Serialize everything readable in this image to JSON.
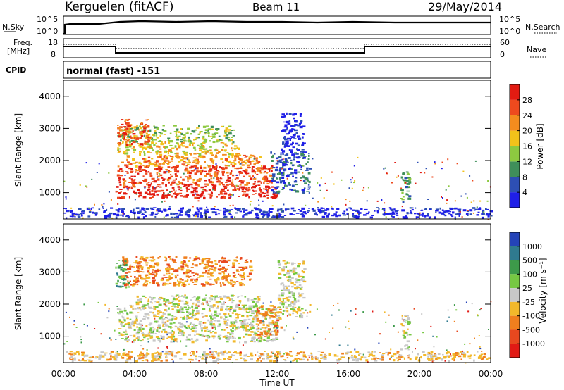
{
  "header": {
    "station": "Kerguelen (fitACF)",
    "beam": "Beam 11",
    "date": "29/May/2014"
  },
  "noise_panel": {
    "left_label": "N.Sky",
    "right_label": "N.Search",
    "left_ticks": [
      "10^5",
      "10^0"
    ],
    "right_ticks": [
      "10^5",
      "10^0"
    ]
  },
  "freq_panel": {
    "left_label_1": "Freq.",
    "left_label_2": "[MHz]",
    "right_label": "Nave",
    "left_ticks": [
      "18",
      "8"
    ],
    "right_ticks": [
      "60",
      "0"
    ]
  },
  "cpid": {
    "label": "CPID",
    "value": "normal (fast) -151"
  },
  "axes": {
    "ylabel": "Slant Range [km]",
    "y_ticks": [
      "1000",
      "2000",
      "3000",
      "4000"
    ],
    "x_ticks": [
      "00:00",
      "04:00",
      "08:00",
      "12:00",
      "16:00",
      "20:00",
      "00:00"
    ],
    "xlabel": "Time UT"
  },
  "power_colorbar": {
    "label": "Power [dB]",
    "ticks": [
      "4",
      "8",
      "12",
      "16",
      "20",
      "24",
      "28"
    ],
    "colors": [
      "#1f1fe8",
      "#2d4fb4",
      "#3f8f5a",
      "#8dc940",
      "#f2c21a",
      "#f48c1e",
      "#ee4a1e",
      "#e21b12"
    ]
  },
  "velocity_colorbar": {
    "label": "Velocity [m s⁻¹]",
    "ticks": [
      "1000",
      "500",
      "100",
      "25",
      "-25",
      "-100",
      "-500",
      "-1000"
    ],
    "colors": [
      "#2443b8",
      "#2f7a8f",
      "#3d9a4a",
      "#76c843",
      "#c8c8c8",
      "#f2b82a",
      "#f07f1e",
      "#e8481f",
      "#e11a15"
    ]
  },
  "chart_data": {
    "type": "heatmap",
    "x_unit": "hours UT",
    "xlim": [
      0,
      24
    ],
    "ylim": [
      180,
      4500
    ],
    "power_patches": [
      {
        "t0": 2.9,
        "t1": 12.0,
        "r0": 850,
        "r1": 1250,
        "level": 7
      },
      {
        "t0": 3.0,
        "t1": 11.8,
        "r0": 1250,
        "r1": 1850,
        "level": 6
      },
      {
        "t0": 3.2,
        "t1": 11.0,
        "r0": 1850,
        "r1": 2200,
        "level": 5
      },
      {
        "t0": 3.0,
        "t1": 9.8,
        "r0": 2200,
        "r1": 2600,
        "level": 4
      },
      {
        "t0": 3.0,
        "t1": 9.5,
        "r0": 2600,
        "r1": 3100,
        "level": 3
      },
      {
        "t0": 3.0,
        "t1": 4.8,
        "r0": 2500,
        "r1": 3300,
        "level": 6
      },
      {
        "t0": 11.6,
        "t1": 13.8,
        "r0": 1000,
        "r1": 2300,
        "level": 1
      },
      {
        "t0": 12.2,
        "t1": 13.5,
        "r0": 2300,
        "r1": 3500,
        "level": 0
      },
      {
        "t0": 18.9,
        "t1": 19.4,
        "r0": 700,
        "r1": 1700,
        "level": 2
      },
      {
        "t0": 0.0,
        "t1": 24.0,
        "r0": 250,
        "r1": 550,
        "level": 0
      }
    ],
    "velocity_patches": [
      {
        "t0": 3.0,
        "t1": 12.0,
        "r0": 850,
        "r1": 1900,
        "level": 4
      },
      {
        "t0": 3.5,
        "t1": 11.0,
        "r0": 1900,
        "r1": 2300,
        "level": 4
      },
      {
        "t0": 2.9,
        "t1": 3.6,
        "r0": 2500,
        "r1": 3400,
        "level": 2
      },
      {
        "t0": 3.2,
        "t1": 10.5,
        "r0": 2600,
        "r1": 3500,
        "level": 6
      },
      {
        "t0": 10.8,
        "t1": 12.2,
        "r0": 1000,
        "r1": 2000,
        "level": 6
      },
      {
        "t0": 12.0,
        "t1": 13.5,
        "r0": 1600,
        "r1": 3400,
        "level": 4
      },
      {
        "t0": 18.9,
        "t1": 19.4,
        "r0": 600,
        "r1": 1700,
        "level": 4
      },
      {
        "t0": 0.0,
        "t1": 24.0,
        "r0": 250,
        "r1": 550,
        "level": 5
      }
    ]
  }
}
